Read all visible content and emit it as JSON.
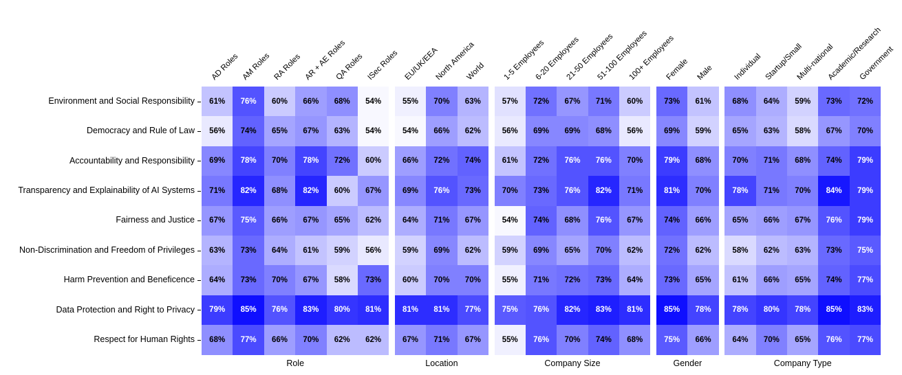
{
  "chart_data": {
    "type": "heatmap",
    "title": "",
    "value_suffix": "%",
    "legend": "none",
    "grid": "off",
    "rows": [
      "Environment and Social Responsibility",
      "Democracy and Rule of Law",
      "Accountability and Responsibility",
      "Transparency and Explainability of AI Systems",
      "Fairness and Justice",
      "Non-Discrimination and Freedom of Privileges",
      "Harm Prevention and Beneficence",
      "Data Protection and Right to Privacy",
      "Respect for Human Rights"
    ],
    "groups": [
      {
        "label": "Role",
        "columns": [
          "AD Roles",
          "AM Roles",
          "RA Roles",
          "AR + AE Roles",
          "QA Roles",
          "ISec Roles"
        ],
        "values": [
          [
            61,
            76,
            60,
            66,
            68,
            54
          ],
          [
            56,
            74,
            65,
            67,
            63,
            54
          ],
          [
            69,
            78,
            70,
            78,
            72,
            60
          ],
          [
            71,
            82,
            68,
            82,
            60,
            67
          ],
          [
            67,
            75,
            66,
            67,
            65,
            62
          ],
          [
            63,
            73,
            64,
            61,
            59,
            56
          ],
          [
            64,
            73,
            70,
            67,
            58,
            73
          ],
          [
            79,
            85,
            76,
            83,
            80,
            81
          ],
          [
            68,
            77,
            66,
            70,
            62,
            62
          ]
        ]
      },
      {
        "label": "Location",
        "columns": [
          "EU/UK/EEA",
          "North America",
          "World"
        ],
        "values": [
          [
            55,
            70,
            63
          ],
          [
            54,
            66,
            62
          ],
          [
            66,
            72,
            74
          ],
          [
            69,
            76,
            73
          ],
          [
            64,
            71,
            67
          ],
          [
            59,
            69,
            62
          ],
          [
            60,
            70,
            70
          ],
          [
            81,
            81,
            77
          ],
          [
            67,
            71,
            67
          ]
        ]
      },
      {
        "label": "Company Size",
        "columns": [
          "1-5 Employees",
          "6-20 Employees",
          "21-50 Employees",
          "51-100 Employees",
          "100+ Employees"
        ],
        "values": [
          [
            57,
            72,
            67,
            71,
            60
          ],
          [
            56,
            69,
            69,
            68,
            56
          ],
          [
            61,
            72,
            76,
            76,
            70
          ],
          [
            70,
            73,
            76,
            82,
            71
          ],
          [
            54,
            74,
            68,
            76,
            67
          ],
          [
            59,
            69,
            65,
            70,
            62
          ],
          [
            55,
            71,
            72,
            73,
            64
          ],
          [
            75,
            76,
            82,
            83,
            81
          ],
          [
            55,
            76,
            70,
            74,
            68
          ]
        ]
      },
      {
        "label": "Gender",
        "columns": [
          "Female",
          "Male"
        ],
        "values": [
          [
            73,
            61
          ],
          [
            69,
            59
          ],
          [
            79,
            68
          ],
          [
            81,
            70
          ],
          [
            74,
            66
          ],
          [
            72,
            62
          ],
          [
            73,
            65
          ],
          [
            85,
            78
          ],
          [
            75,
            66
          ]
        ]
      },
      {
        "label": "Company Type",
        "columns": [
          "Individual",
          "Startup/Small",
          "Multi-national",
          "Academic/Research",
          "Government"
        ],
        "values": [
          [
            68,
            64,
            59,
            73,
            72
          ],
          [
            65,
            63,
            58,
            67,
            70
          ],
          [
            70,
            71,
            68,
            74,
            79
          ],
          [
            78,
            71,
            70,
            84,
            79
          ],
          [
            65,
            66,
            67,
            76,
            79
          ],
          [
            58,
            62,
            63,
            73,
            75
          ],
          [
            61,
            66,
            65,
            74,
            77
          ],
          [
            78,
            80,
            78,
            85,
            83
          ],
          [
            64,
            70,
            65,
            76,
            77
          ]
        ]
      }
    ],
    "colormap": {
      "low_color": "#ffffff",
      "high_color": "#0808ff",
      "min_value": 53,
      "max_value": 86,
      "white_text_threshold": 75,
      "black_text_color": "#000000",
      "white_text_color": "#ffffff"
    }
  }
}
